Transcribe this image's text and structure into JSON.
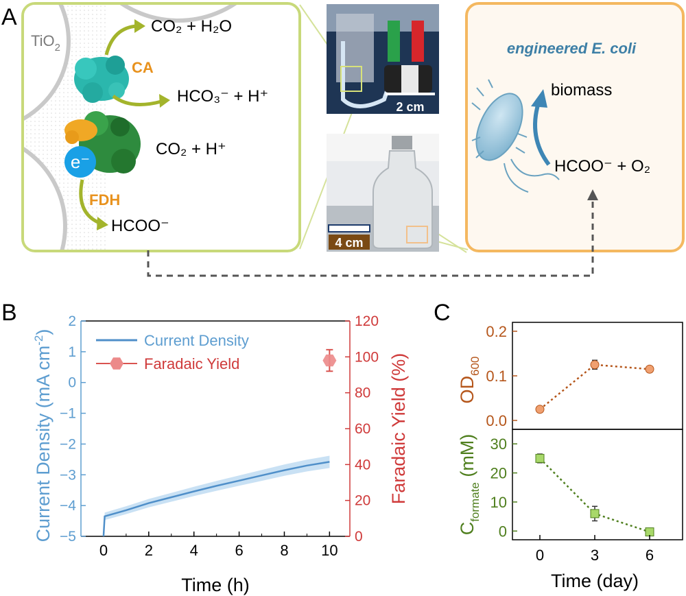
{
  "panel_a": {
    "letter": "A",
    "tio2_label": "TiO",
    "tio2_sub": "2",
    "ca_label": "CA",
    "fdh_label": "FDH",
    "electron_label": "e⁻",
    "rxn_co2_h2o": "CO₂ + H₂O",
    "rxn_hco3": "HCO₃⁻ + H⁺",
    "rxn_co2_h": "CO₂ + H⁺",
    "rxn_hcoo": "HCOO⁻",
    "ecoli_title": "engineered E. coli",
    "biomass_label": "biomass",
    "rxn_hcoo_o2": "HCOO⁻ + O₂",
    "scalebar_top": "2 cm",
    "scalebar_bottom": "4 cm",
    "colors": {
      "green_box": "#c8d97a",
      "orange_box": "#f4b860",
      "ca": "#e8921e",
      "ecoli_title": "#3d7fa6"
    }
  },
  "chart_data": [
    {
      "panel": "B",
      "type": "line",
      "xlabel": "Time (h)",
      "ylabel_left": "Current Density (mA cm",
      "ylabel_left_sup": "-2",
      "ylabel_left_end": ")",
      "ylabel_right": "Faradaic Yield (%)",
      "xlim": [
        -1,
        10.9
      ],
      "xticks": [
        0,
        2,
        4,
        6,
        8,
        10
      ],
      "ylim_left": [
        -5,
        2
      ],
      "yticks_left": [
        2,
        1,
        0,
        -1,
        -2,
        -3,
        -4,
        -5
      ],
      "ytick_labels_left": [
        "2",
        "1",
        "0",
        "−1",
        "−2",
        "−3",
        "−4",
        "−5"
      ],
      "ylim_right": [
        0,
        120
      ],
      "yticks_right": [
        0,
        20,
        40,
        60,
        80,
        100,
        120
      ],
      "legend": [
        "Current Density",
        "Faradaic Yield"
      ],
      "legend_position": "top-left",
      "series": [
        {
          "name": "Current Density",
          "axis": "left",
          "x": [
            0,
            0.05,
            1,
            2,
            3,
            4,
            5,
            6,
            7,
            8,
            9,
            10
          ],
          "y": [
            -5,
            -4.35,
            -4.15,
            -3.92,
            -3.73,
            -3.54,
            -3.36,
            -3.19,
            -3.02,
            -2.85,
            -2.7,
            -2.58
          ],
          "band_halfwidth": 0.2
        },
        {
          "name": "Faradaic Yield",
          "axis": "right",
          "x": [
            10
          ],
          "y": [
            98
          ],
          "yerr": [
            6
          ]
        }
      ],
      "colors": {
        "current": "#4f8fc9",
        "band": "#c9e1f4",
        "faradaic": "#d9534f",
        "left_axis": "#5d9dd0",
        "right_axis": "#cf3a3a"
      }
    },
    {
      "panel": "C",
      "type": "line",
      "xlabel": "Time (day)",
      "x": [
        0,
        3,
        6
      ],
      "xtick_labels": [
        "0",
        "3",
        "6"
      ],
      "subplots": [
        {
          "ylabel": "OD",
          "ylabel_sub": "600",
          "ylim": [
            -0.02,
            0.22
          ],
          "yticks": [
            0.0,
            0.1,
            0.2
          ],
          "ytick_labels": [
            "0.0",
            "0.1",
            "0.2"
          ],
          "values": [
            0.025,
            0.125,
            0.115
          ],
          "errors": [
            0.003,
            0.01,
            0.006
          ],
          "color": "#b5561b",
          "marker_color": "#f0a070"
        },
        {
          "ylabel": "C",
          "ylabel_sub": "formate",
          "ylabel_end": " (mM)",
          "ylim": [
            -3,
            35
          ],
          "yticks": [
            0,
            10,
            20,
            30
          ],
          "ytick_labels": [
            "0",
            "10",
            "20",
            "30"
          ],
          "values": [
            25,
            6,
            -0.3
          ],
          "errors": [
            1.5,
            2.5,
            0.5
          ],
          "color": "#4f7f1e",
          "marker_color": "#a8d86a"
        }
      ]
    }
  ],
  "panel_letters": {
    "b": "B",
    "c": "C"
  }
}
